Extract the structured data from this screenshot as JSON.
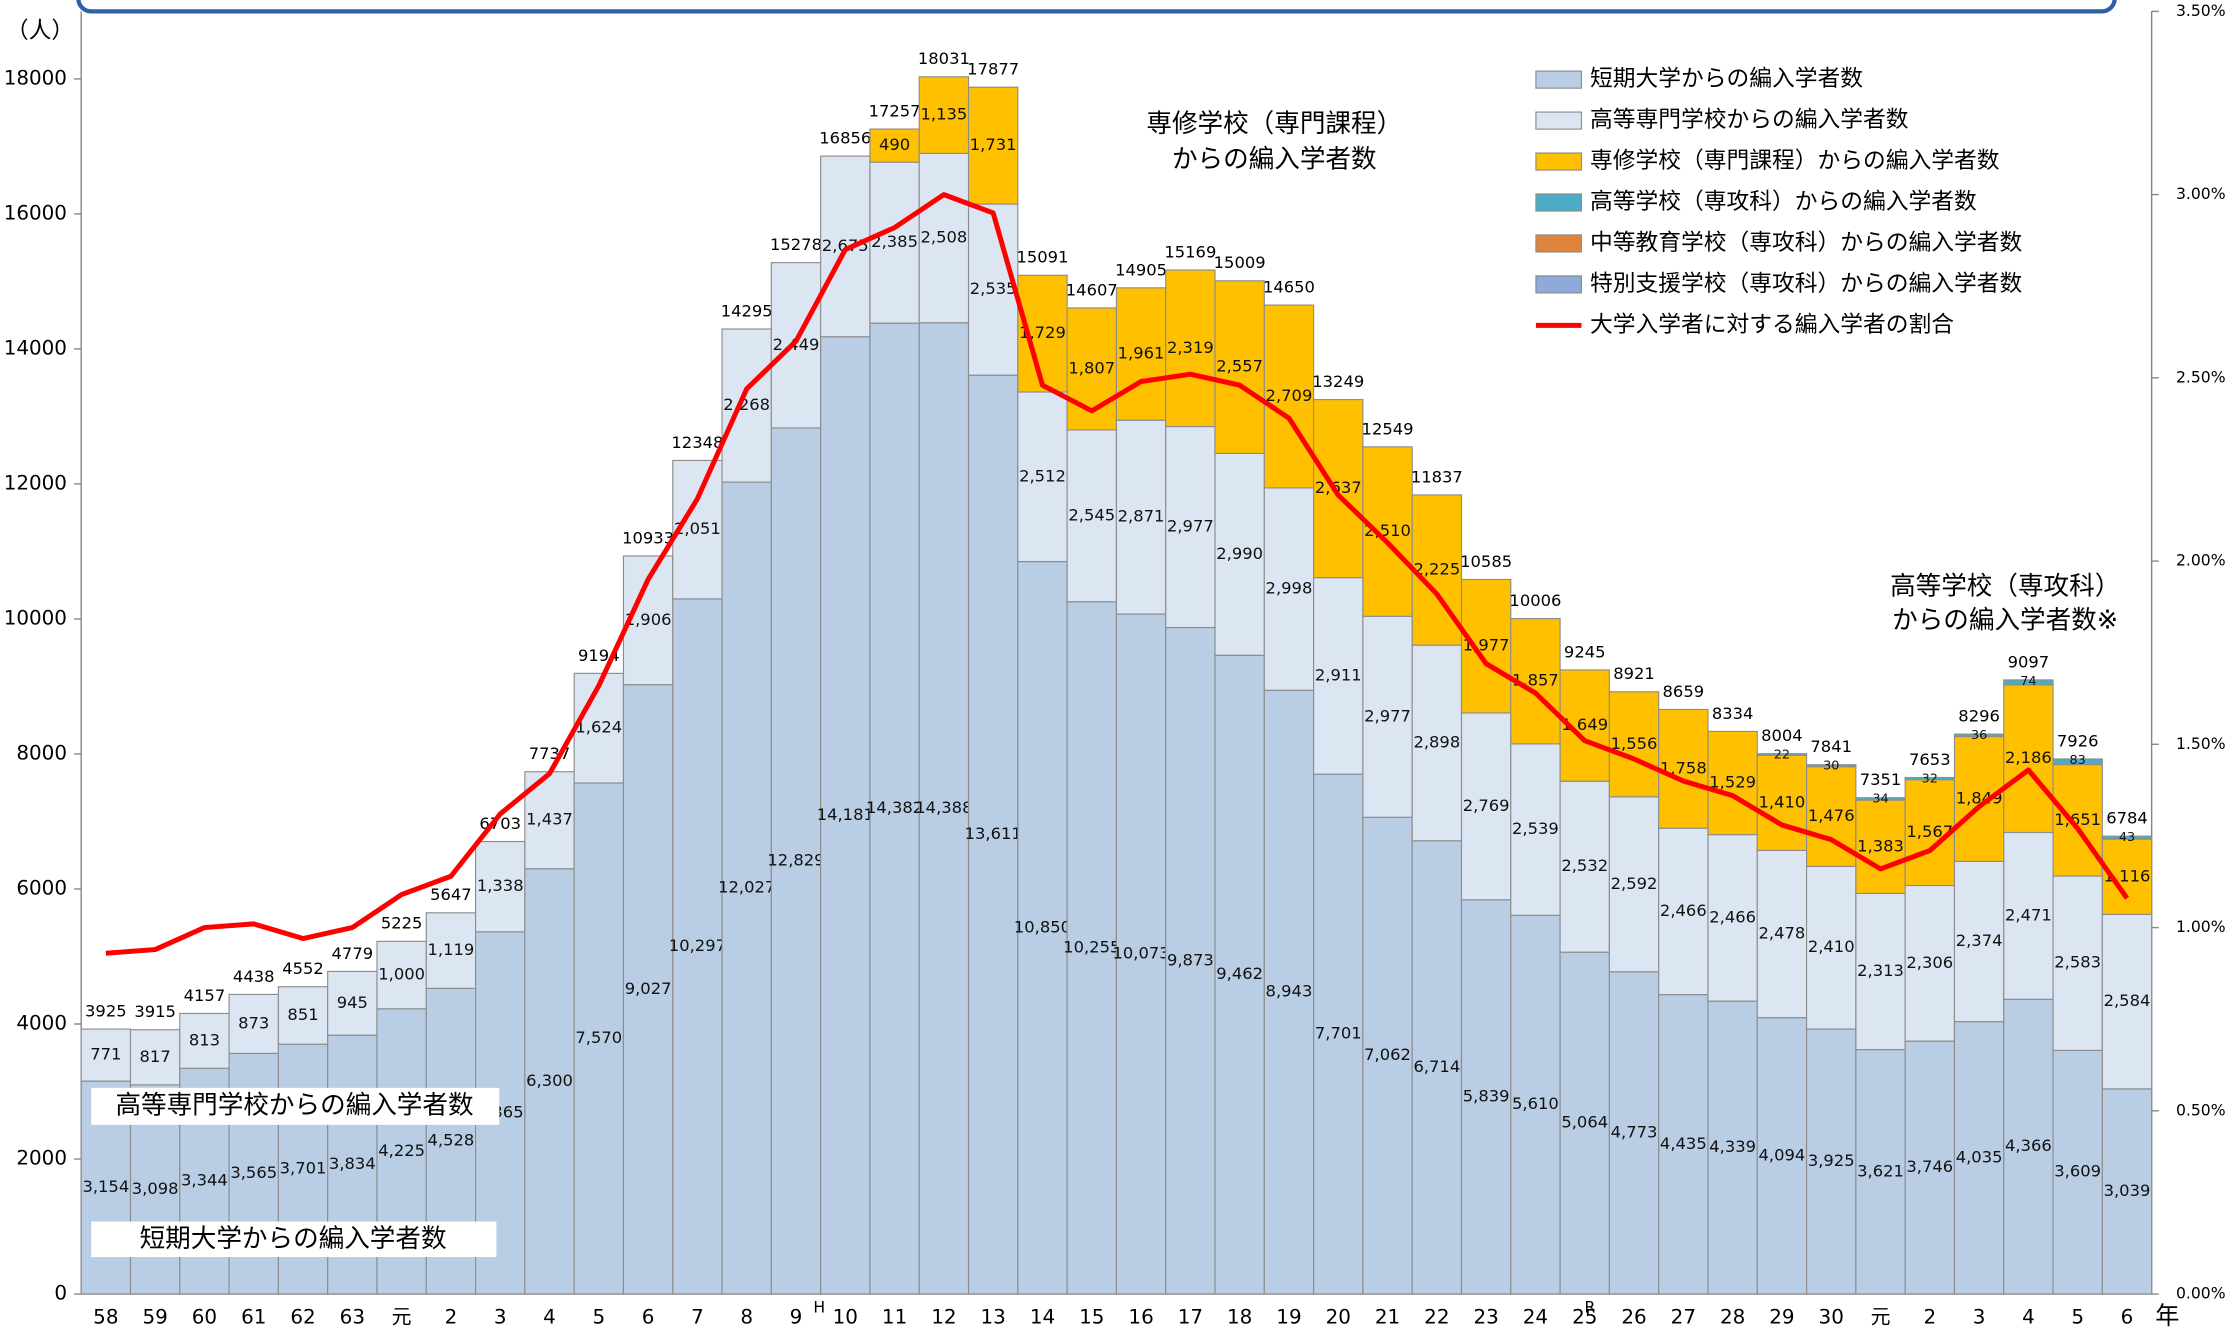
{
  "chart_data": {
    "type": "bar",
    "stacked": true,
    "y_unit": "（人）",
    "x_unit": "年",
    "annotations": [
      "専修学校（専門課程）",
      "からの編入学者数",
      "高等学校（専攻科）",
      "からの編入学者数※",
      "高等専門学校からの編入学者数",
      "短期大学からの編入学者数",
      "H",
      "R"
    ],
    "categories": [
      "58",
      "59",
      "60",
      "61",
      "62",
      "63",
      "元",
      "2",
      "3",
      "4",
      "5",
      "6",
      "7",
      "8",
      "9",
      "10",
      "11",
      "12",
      "13",
      "14",
      "15",
      "16",
      "17",
      "18",
      "19",
      "20",
      "21",
      "22",
      "23",
      "24",
      "25",
      "26",
      "27",
      "28",
      "29",
      "30",
      "元",
      "2",
      "3",
      "4",
      "5",
      "6"
    ],
    "totals": [
      3925,
      3915,
      4157,
      4438,
      4552,
      4779,
      5225,
      5647,
      6703,
      7737,
      9194,
      10933,
      12348,
      14295,
      15278,
      16856,
      17257,
      18031,
      17877,
      15091,
      14607,
      14905,
      15169,
      15009,
      14650,
      13249,
      12549,
      11837,
      10585,
      10006,
      9245,
      8921,
      8659,
      8334,
      8004,
      7841,
      7351,
      7653,
      8296,
      9097,
      7926,
      6784
    ],
    "series": [
      {
        "name": "短期大学からの編入学者数",
        "color": "#b9cde5",
        "values": [
          3154,
          3098,
          3344,
          3565,
          3701,
          3834,
          4225,
          4528,
          5365,
          6300,
          7570,
          9027,
          10297,
          12027,
          12829,
          14181,
          14382,
          14388,
          13611,
          10850,
          10255,
          10073,
          9873,
          9462,
          8943,
          7701,
          7062,
          6714,
          5839,
          5610,
          5064,
          4773,
          4435,
          4339,
          4094,
          3925,
          3621,
          3746,
          4035,
          4366,
          3609,
          3039
        ],
        "value_labels": [
          "3,154",
          "3,098",
          "3,344",
          "3,565",
          "3,701",
          "3,834",
          "4,225",
          "4,528",
          "5,365",
          "6,300",
          "7,570",
          "9,027",
          "10,297",
          "12,027",
          "12,829",
          "14,181",
          "14,382",
          "14,388",
          "13,611",
          "10,850",
          "10,255",
          "10,073",
          "9,873",
          "9,462",
          "8,943",
          "7,701",
          "7,062",
          "6,714",
          "5,839",
          "5,610",
          "5,064",
          "4,773",
          "4,435",
          "4,339",
          "4,094",
          "3,925",
          "3,621",
          "3,746",
          "4,035",
          "4,366",
          "3,609",
          "3,039"
        ]
      },
      {
        "name": "高等専門学校からの編入学者数",
        "color": "#dce6f2",
        "values": [
          771,
          817,
          813,
          873,
          851,
          945,
          1000,
          1119,
          1338,
          1437,
          1624,
          1906,
          2051,
          2268,
          2449,
          2675,
          2385,
          2508,
          2535,
          2512,
          2545,
          2871,
          2977,
          2990,
          2998,
          2911,
          2977,
          2898,
          2769,
          2539,
          2532,
          2592,
          2466,
          2466,
          2478,
          2410,
          2313,
          2306,
          2374,
          2471,
          2583,
          2584
        ],
        "value_labels": [
          "771",
          "817",
          "813",
          "873",
          "851",
          "945",
          "1,000",
          "1,119",
          "1,338",
          "1,437",
          "1,624",
          "1,906",
          "2,051",
          "2,268",
          "2,449",
          "2,675",
          "2,385",
          "2,508",
          "2,535",
          "2,512",
          "2,545",
          "2,871",
          "2,977",
          "2,990",
          "2,998",
          "2,911",
          "2,977",
          "2,898",
          "2,769",
          "2,539",
          "2,532",
          "2,592",
          "2,466",
          "2,466",
          "2,478",
          "2,410",
          "2,313",
          "2,306",
          "2,374",
          "2,471",
          "2,583",
          "2,584"
        ]
      },
      {
        "name": "専修学校（専門課程）からの編入学者数",
        "color": "#ffc000",
        "values": [
          null,
          null,
          null,
          null,
          null,
          null,
          null,
          null,
          null,
          null,
          null,
          null,
          null,
          null,
          null,
          null,
          490,
          1135,
          1731,
          1729,
          1807,
          1961,
          2319,
          2557,
          2709,
          2637,
          2510,
          2225,
          1977,
          1857,
          1649,
          1556,
          1758,
          1529,
          1410,
          1476,
          1383,
          1567,
          1849,
          2186,
          1651,
          1116
        ],
        "value_labels": [
          null,
          null,
          null,
          null,
          null,
          null,
          null,
          null,
          null,
          null,
          null,
          null,
          null,
          null,
          null,
          null,
          "490",
          "1,135",
          "1,731",
          "1,729",
          "1,807",
          "1,961",
          "2,319",
          "2,557",
          "2,709",
          "2,637",
          "2,510",
          "2,225",
          "1,977",
          "1,857",
          "1,649",
          "1,556",
          "1,758",
          "1,529",
          "1,410",
          "1,476",
          "1,383",
          "1,567",
          "1,849",
          "2,186",
          "1,651",
          "1,116"
        ]
      },
      {
        "name": "高等学校（専攻科）からの編入学者数",
        "color": "#4bacc6",
        "values": [
          null,
          null,
          null,
          null,
          null,
          null,
          null,
          null,
          null,
          null,
          null,
          null,
          null,
          null,
          null,
          null,
          null,
          null,
          null,
          null,
          null,
          null,
          null,
          null,
          null,
          null,
          null,
          null,
          null,
          null,
          null,
          null,
          null,
          null,
          22,
          30,
          34,
          32,
          36,
          74,
          83,
          43
        ]
      },
      {
        "name": "中等教育学校（専攻科）からの編入学者数",
        "color": "#e0843c",
        "values": [
          null,
          null,
          null,
          null,
          null,
          null,
          null,
          null,
          null,
          null,
          null,
          null,
          null,
          null,
          null,
          null,
          null,
          null,
          null,
          null,
          null,
          null,
          null,
          null,
          null,
          null,
          null,
          null,
          null,
          null,
          null,
          null,
          null,
          null,
          null,
          null,
          null,
          null,
          null,
          null,
          null,
          null
        ]
      },
      {
        "name": "特別支援学校（専攻科）からの編入学者数",
        "color": "#8eaadb",
        "values": [
          null,
          null,
          null,
          null,
          null,
          null,
          null,
          null,
          null,
          null,
          null,
          null,
          null,
          null,
          null,
          null,
          null,
          null,
          null,
          null,
          null,
          null,
          null,
          null,
          null,
          null,
          null,
          null,
          null,
          null,
          null,
          null,
          null,
          null,
          null,
          null,
          null,
          null,
          null,
          null,
          null,
          null
        ]
      },
      {
        "name": "大学入学者に対する編入学者の割合",
        "color": "#ff0000",
        "type": "line",
        "axis": "y2",
        "values": [
          0.93,
          0.94,
          1.0,
          1.01,
          0.97,
          1.0,
          1.09,
          1.14,
          1.31,
          1.42,
          1.66,
          1.95,
          2.17,
          2.47,
          2.6,
          2.85,
          2.91,
          3.0,
          2.95,
          2.48,
          2.41,
          2.49,
          2.51,
          2.48,
          2.39,
          2.18,
          2.05,
          1.91,
          1.72,
          1.64,
          1.51,
          1.46,
          1.4,
          1.36,
          1.28,
          1.24,
          1.16,
          1.21,
          1.33,
          1.43,
          1.27,
          1.08
        ]
      }
    ],
    "ylim": [
      0,
      19000
    ],
    "yticks": [
      0,
      2000,
      4000,
      6000,
      8000,
      10000,
      12000,
      14000,
      16000,
      18000
    ],
    "y2lim": [
      0,
      3.5
    ],
    "y2ticks": [
      {
        "value": 0,
        "label": "0.00%"
      },
      {
        "value": 0.5,
        "label": "0.50%"
      },
      {
        "value": 1,
        "label": "1.00%"
      },
      {
        "value": 1.5,
        "label": "1.50%"
      },
      {
        "value": 2,
        "label": "2.00%"
      },
      {
        "value": 2.5,
        "label": "2.50%"
      },
      {
        "value": 3,
        "label": "3.00%"
      },
      {
        "value": 3.5,
        "label": "3.50%"
      }
    ],
    "legend": "upper right"
  }
}
